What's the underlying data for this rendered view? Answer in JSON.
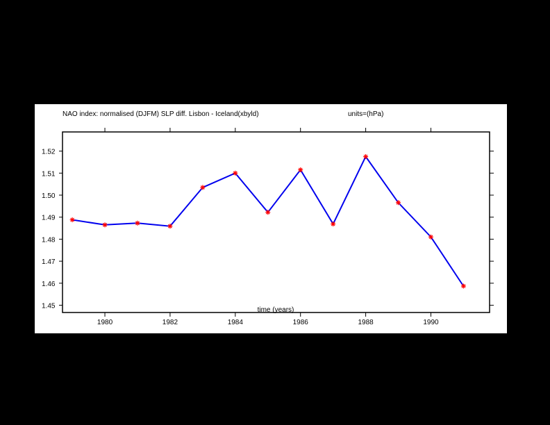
{
  "chart_data": {
    "type": "line",
    "title": "NAO index: normalised (DJFM) SLP diff. Lisbon - Iceland(xbyld)",
    "units_label": "units=(hPa)",
    "xlabel": "time (years)",
    "ylabel": "",
    "xlim": [
      1978.7,
      1991.8
    ],
    "ylim": [
      1.4467,
      1.5287
    ],
    "x_ticks": [
      1980,
      1982,
      1984,
      1986,
      1988,
      1990
    ],
    "x_tick_labels": [
      "1980",
      "1982",
      "1984",
      "1986",
      "1988",
      "1990"
    ],
    "y_ticks": [
      1.45,
      1.46,
      1.47,
      1.48,
      1.49,
      1.5,
      1.51,
      1.52
    ],
    "y_tick_labels": [
      "1.45",
      "1.46",
      "1.47",
      "1.48",
      "1.49",
      "1.50",
      "1.51",
      "1.52"
    ],
    "grid": false,
    "series": [
      {
        "line_color": "#0000ee",
        "marker_color": "#ff0000",
        "marker": "asterisk",
        "x": [
          1979,
          1980,
          1981,
          1982,
          1983,
          1984,
          1985,
          1986,
          1987,
          1988,
          1989,
          1990,
          1991
        ],
        "y": [
          1.4888,
          1.4865,
          1.4873,
          1.4859,
          1.5035,
          1.51,
          1.4922,
          1.5115,
          1.4869,
          1.5175,
          1.4966,
          1.481,
          1.4587
        ]
      }
    ]
  }
}
